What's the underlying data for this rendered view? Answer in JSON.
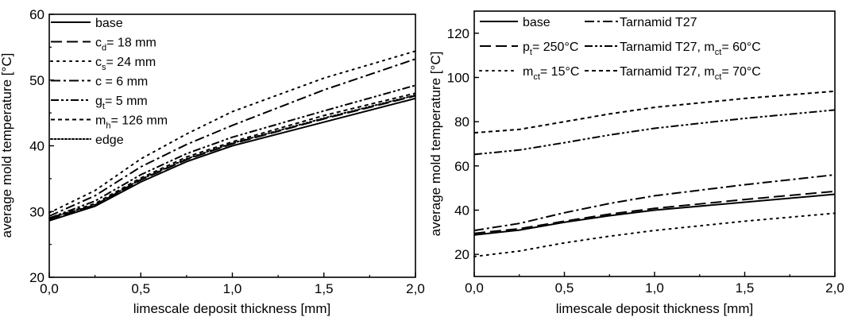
{
  "chart_data": [
    {
      "type": "line",
      "xlabel": "limescale deposit thickness [mm]",
      "ylabel": "average mold temperature [°C]",
      "xlim": [
        0,
        2
      ],
      "ylim": [
        20,
        60
      ],
      "xticks": [
        "0,0",
        "0,5",
        "1,0",
        "1,5",
        "2,0"
      ],
      "yticks": [
        "20",
        "30",
        "40",
        "50",
        "60"
      ],
      "legend_position": "top-left",
      "series": [
        {
          "name": "base",
          "label_main": "base",
          "label_sub": "",
          "label_tail": "",
          "dash": "solid",
          "x": [
            0,
            0.25,
            0.5,
            0.75,
            1.0,
            1.5,
            2.0
          ],
          "y": [
            28.6,
            30.8,
            34.5,
            37.6,
            40.0,
            43.6,
            47.2
          ]
        },
        {
          "name": "c_d = 18 mm",
          "label_main": "c",
          "label_sub": "d",
          "label_tail": "= 18 mm",
          "dash": "longdash",
          "x": [
            0,
            0.25,
            0.5,
            0.75,
            1.0,
            1.5,
            2.0
          ],
          "y": [
            28.8,
            31.0,
            34.8,
            37.9,
            40.3,
            44.1,
            47.6
          ]
        },
        {
          "name": "c_s = 24 mm",
          "label_main": "c",
          "label_sub": "s",
          "label_tail": "= 24 mm",
          "dash": "dotsparse",
          "x": [
            0,
            0.25,
            0.5,
            0.75,
            1.0,
            1.5,
            2.0
          ],
          "y": [
            29.8,
            33.2,
            38.0,
            41.8,
            45.2,
            50.3,
            54.4
          ]
        },
        {
          "name": "c = 6 mm",
          "label_main": "c = 6 mm",
          "label_sub": "",
          "label_tail": "",
          "dash": "dashdot",
          "x": [
            0,
            0.25,
            0.5,
            0.75,
            1.0,
            1.5,
            2.0
          ],
          "y": [
            29.3,
            32.4,
            36.8,
            40.2,
            43.1,
            48.5,
            53.2
          ]
        },
        {
          "name": "g_t = 5 mm",
          "label_main": "g",
          "label_sub": "t",
          "label_tail": "= 5 mm",
          "dash": "dashdotdot",
          "x": [
            0,
            0.25,
            0.5,
            0.75,
            1.0,
            1.5,
            2.0
          ],
          "y": [
            29.0,
            31.6,
            35.6,
            38.8,
            41.3,
            45.3,
            49.2
          ]
        },
        {
          "name": "m_h = 126 mm",
          "label_main": "m",
          "label_sub": "h",
          "label_tail": "= 126 mm",
          "dash": "shortdash",
          "x": [
            0,
            0.25,
            0.5,
            0.75,
            1.0,
            1.5,
            2.0
          ],
          "y": [
            29.0,
            31.2,
            35.1,
            38.3,
            40.6,
            44.6,
            48.0
          ]
        },
        {
          "name": "edge",
          "label_main": "edge",
          "label_sub": "",
          "label_tail": "",
          "dash": "dotted",
          "x": [
            0,
            0.25,
            0.5,
            0.75,
            1.0,
            1.5,
            2.0
          ],
          "y": [
            29.0,
            31.0,
            34.9,
            38.0,
            40.4,
            44.2,
            47.7
          ]
        }
      ]
    },
    {
      "type": "line",
      "xlabel": "limescale deposit thickness [mm]",
      "ylabel": "average mold temperature [°C]",
      "xlim": [
        0,
        2
      ],
      "ylim": [
        10,
        130
      ],
      "xticks": [
        "0,0",
        "0,5",
        "1,0",
        "1,5",
        "2,0"
      ],
      "yticks": [
        "20",
        "40",
        "60",
        "80",
        "100",
        "120"
      ],
      "legend_position": "top",
      "series": [
        {
          "name": "base",
          "label_main": "base",
          "label_sub": "",
          "label_tail": "",
          "dash": "solid",
          "x": [
            0,
            0.25,
            0.5,
            0.75,
            1.0,
            1.5,
            2.0
          ],
          "y": [
            28.8,
            31.0,
            34.5,
            37.5,
            40.0,
            43.6,
            47.2
          ]
        },
        {
          "name": "p_t = 250°C",
          "label_main": "p",
          "label_sub": "t",
          "label_tail": "= 250°C",
          "dash": "longdash",
          "x": [
            0,
            0.25,
            0.5,
            0.75,
            1.0,
            1.5,
            2.0
          ],
          "y": [
            29.5,
            31.6,
            35.0,
            38.2,
            40.8,
            44.8,
            48.5
          ]
        },
        {
          "name": "m_ct = 15°C",
          "label_main": "m",
          "label_sub": "ct",
          "label_tail": "= 15°C",
          "dash": "dotsparse",
          "x": [
            0,
            0.25,
            0.5,
            0.75,
            1.0,
            1.5,
            2.0
          ],
          "y": [
            19.0,
            21.5,
            25.2,
            28.2,
            30.8,
            35.0,
            38.6
          ]
        },
        {
          "name": "Tarnamid T27",
          "label_main": "Tarnamid T27",
          "label_sub": "",
          "label_tail": "",
          "dash": "dashdot",
          "x": [
            0,
            0.25,
            0.5,
            0.75,
            1.0,
            1.5,
            2.0
          ],
          "y": [
            30.8,
            34.0,
            38.8,
            43.0,
            46.5,
            51.5,
            56.0
          ]
        },
        {
          "name": "Tarnamid T27, m_ct = 60°C",
          "label_main": "Tarnamid T27, m",
          "label_sub": "ct",
          "label_tail": "= 60°C",
          "dash": "dashdotdot",
          "x": [
            0,
            0.25,
            0.5,
            0.75,
            1.0,
            1.5,
            2.0
          ],
          "y": [
            65.2,
            67.2,
            70.5,
            74.0,
            77.0,
            81.5,
            85.3
          ]
        },
        {
          "name": "Tarnamid T27, m_ct = 70°C",
          "label_main": "Tarnamid T27, m",
          "label_sub": "ct",
          "label_tail": "= 70°C",
          "dash": "shortdash",
          "x": [
            0,
            0.25,
            0.5,
            0.75,
            1.0,
            1.5,
            2.0
          ],
          "y": [
            75.0,
            76.5,
            80.0,
            83.5,
            86.5,
            90.5,
            93.8
          ]
        }
      ]
    }
  ]
}
